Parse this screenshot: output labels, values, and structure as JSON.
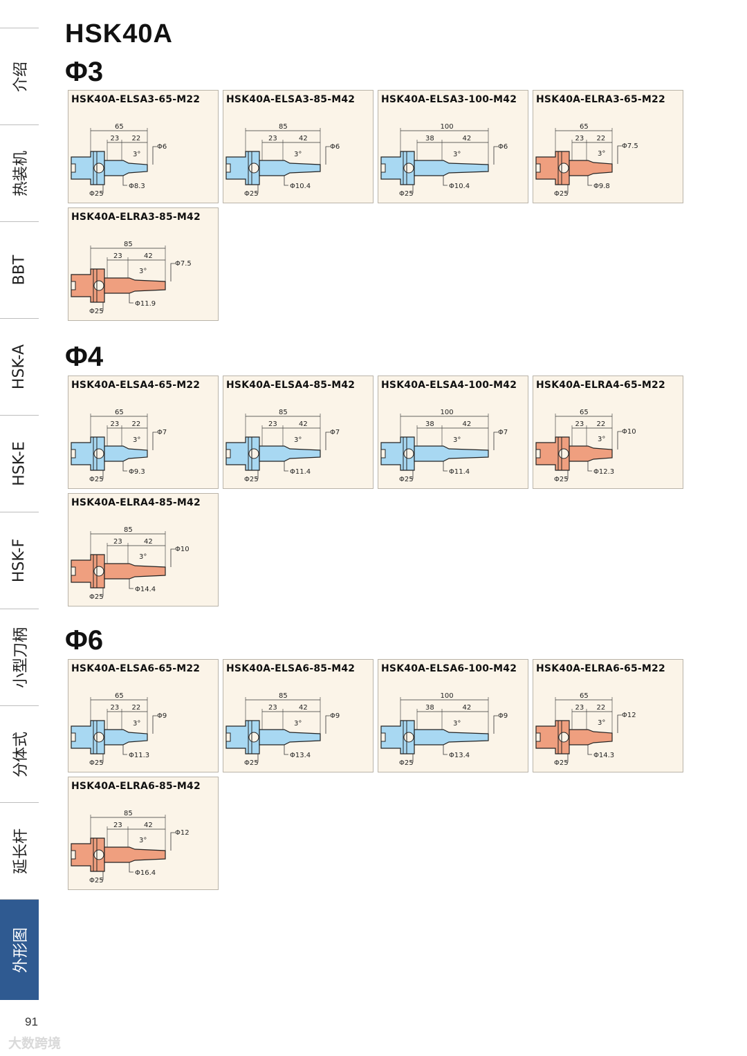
{
  "page_title": "HSK40A",
  "sidebar": {
    "items": [
      {
        "label": "介绍"
      },
      {
        "label": "热装机"
      },
      {
        "label": "BBT"
      },
      {
        "label": "HSK-A"
      },
      {
        "label": "HSK-E"
      },
      {
        "label": "HSK-F"
      },
      {
        "label": "小型刀柄"
      },
      {
        "label": "分体式"
      },
      {
        "label": "延长杆"
      },
      {
        "label": "外形图"
      }
    ],
    "active": "外形图"
  },
  "colors": {
    "blue_holder": "#a8d8f2",
    "red_holder": "#ef9f7f",
    "accent": "#2f5a91",
    "card_bg": "#fbf4e8"
  },
  "sections": [
    {
      "title": "Φ3",
      "items": [
        {
          "name": "HSK40A-ELSA3-65-M22",
          "color": "blue",
          "total": "65",
          "a": "23",
          "b": "22",
          "angle": "3°",
          "tip": "Φ6",
          "body": "Φ8.3",
          "base": "Φ25"
        },
        {
          "name": "HSK40A-ELSA3-85-M42",
          "color": "blue",
          "total": "85",
          "a": "23",
          "b": "42",
          "angle": "3°",
          "tip": "Φ6",
          "body": "Φ10.4",
          "base": "Φ25"
        },
        {
          "name": "HSK40A-ELSA3-100-M42",
          "color": "blue",
          "total": "100",
          "a": "38",
          "b": "42",
          "angle": "3°",
          "tip": "Φ6",
          "body": "Φ10.4",
          "base": "Φ25"
        },
        {
          "name": "HSK40A-ELRA3-65-M22",
          "color": "red",
          "total": "65",
          "a": "23",
          "b": "22",
          "angle": "3°",
          "tip": "Φ7.5",
          "body": "Φ9.8",
          "base": "Φ25"
        },
        {
          "name": "HSK40A-ELRA3-85-M42",
          "color": "red",
          "total": "85",
          "a": "23",
          "b": "42",
          "angle": "3°",
          "tip": "Φ7.5",
          "body": "Φ11.9",
          "base": "Φ25"
        }
      ]
    },
    {
      "title": "Φ4",
      "items": [
        {
          "name": "HSK40A-ELSA4-65-M22",
          "color": "blue",
          "total": "65",
          "a": "23",
          "b": "22",
          "angle": "3°",
          "tip": "Φ7",
          "body": "Φ9.3",
          "base": "Φ25"
        },
        {
          "name": "HSK40A-ELSA4-85-M42",
          "color": "blue",
          "total": "85",
          "a": "23",
          "b": "42",
          "angle": "3°",
          "tip": "Φ7",
          "body": "Φ11.4",
          "base": "Φ25"
        },
        {
          "name": "HSK40A-ELSA4-100-M42",
          "color": "blue",
          "total": "100",
          "a": "38",
          "b": "42",
          "angle": "3°",
          "tip": "Φ7",
          "body": "Φ11.4",
          "base": "Φ25"
        },
        {
          "name": "HSK40A-ELRA4-65-M22",
          "color": "red",
          "total": "65",
          "a": "23",
          "b": "22",
          "angle": "3°",
          "tip": "Φ10",
          "body": "Φ12.3",
          "base": "Φ25"
        },
        {
          "name": "HSK40A-ELRA4-85-M42",
          "color": "red",
          "total": "85",
          "a": "23",
          "b": "42",
          "angle": "3°",
          "tip": "Φ10",
          "body": "Φ14.4",
          "base": "Φ25"
        }
      ]
    },
    {
      "title": "Φ6",
      "items": [
        {
          "name": "HSK40A-ELSA6-65-M22",
          "color": "blue",
          "total": "65",
          "a": "23",
          "b": "22",
          "angle": "3°",
          "tip": "Φ9",
          "body": "Φ11.3",
          "base": "Φ25"
        },
        {
          "name": "HSK40A-ELSA6-85-M42",
          "color": "blue",
          "total": "85",
          "a": "23",
          "b": "42",
          "angle": "3°",
          "tip": "Φ9",
          "body": "Φ13.4",
          "base": "Φ25"
        },
        {
          "name": "HSK40A-ELSA6-100-M42",
          "color": "blue",
          "total": "100",
          "a": "38",
          "b": "42",
          "angle": "3°",
          "tip": "Φ9",
          "body": "Φ13.4",
          "base": "Φ25"
        },
        {
          "name": "HSK40A-ELRA6-65-M22",
          "color": "red",
          "total": "65",
          "a": "23",
          "b": "22",
          "angle": "3°",
          "tip": "Φ12",
          "body": "Φ14.3",
          "base": "Φ25"
        },
        {
          "name": "HSK40A-ELRA6-85-M42",
          "color": "red",
          "total": "85",
          "a": "23",
          "b": "42",
          "angle": "3°",
          "tip": "Φ12",
          "body": "Φ16.4",
          "base": "Φ25"
        }
      ]
    }
  ],
  "page_number": "91",
  "watermark": "大数跨境"
}
